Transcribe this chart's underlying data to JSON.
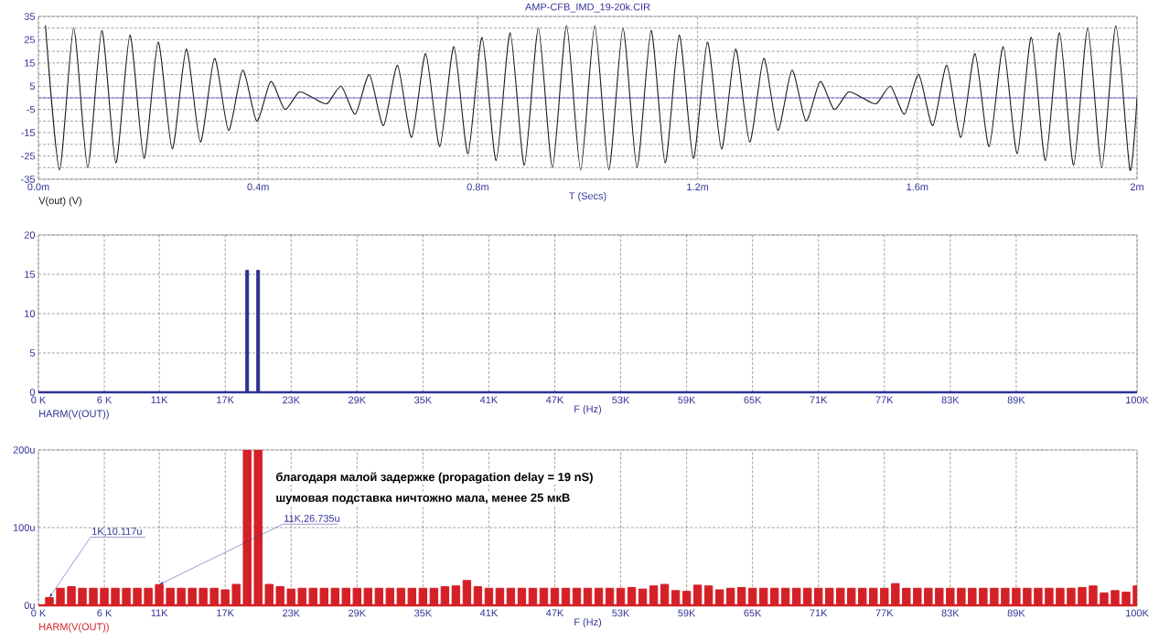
{
  "chart_data": [
    {
      "type": "line",
      "title": "AMP-CFB_IMD_19-20k.CIR",
      "xlabel": "T (Secs)",
      "legend": "bottom left",
      "x": [
        0.0128,
        0.0384,
        0.0641,
        0.0897,
        0.1154,
        0.141,
        0.1666,
        0.1923,
        0.2179,
        0.2436,
        0.2692,
        0.2948,
        0.3205,
        0.3461,
        0.3718,
        0.3974,
        0.423,
        0.4487,
        0.4743,
        0.5,
        0.5256,
        0.5512,
        0.5769,
        0.6025,
        0.6282,
        0.6538,
        0.6794,
        0.7051,
        0.7307,
        0.7564,
        0.782,
        0.8076,
        0.8333,
        0.8589,
        0.8846,
        0.9102,
        0.9358,
        0.9615,
        0.9871,
        1.0128,
        1.0384,
        1.0641,
        1.0897,
        1.1154,
        1.141,
        1.1666,
        1.1923,
        1.2179,
        1.2436,
        1.2692,
        1.2948,
        1.3205,
        1.3461,
        1.3718,
        1.3974,
        1.423,
        1.4487,
        1.4743,
        1.5,
        1.5256,
        1.5512,
        1.5769,
        1.6025,
        1.6282,
        1.6538,
        1.6794,
        1.7051,
        1.7307,
        1.7564,
        1.782,
        1.8076,
        1.8333,
        1.8589,
        1.8846,
        1.9102,
        1.9358,
        1.9615,
        1.9871,
        2
      ],
      "series": [
        {
          "name": "V(out) (V)",
          "color": "#1a1a1a",
          "values": [
            31,
            -31,
            30,
            -30,
            29,
            -28,
            27,
            -26,
            24,
            -22,
            21,
            -19,
            17,
            -14,
            12,
            -10,
            7,
            -5,
            2.5,
            0,
            -2.5,
            5,
            -7,
            10,
            -12,
            14,
            -17,
            19,
            -21,
            22,
            -24,
            26,
            -27,
            28,
            -29,
            30,
            -30,
            31,
            -31,
            31,
            -31,
            30,
            -30,
            29,
            -28,
            27,
            -26,
            24,
            -22,
            21,
            -19,
            17,
            -14,
            12,
            -10,
            7,
            -5,
            2.5,
            0,
            -2.5,
            5,
            -7,
            10,
            -12,
            14,
            -17,
            19,
            -21,
            22,
            -24,
            26,
            -27,
            28,
            -29,
            30,
            -30,
            31,
            -31,
            0
          ]
        }
      ],
      "xlim": [
        0,
        2
      ],
      "xticks": [
        {
          "value": 0,
          "label": "0.0m"
        },
        {
          "value": 0.4,
          "label": "0.4m"
        },
        {
          "value": 0.8,
          "label": "0.8m"
        },
        {
          "value": 1.2,
          "label": "1.2m"
        },
        {
          "value": 1.6,
          "label": "1.6m"
        },
        {
          "value": 2,
          "label": "2m"
        }
      ],
      "ylim": [
        -35,
        35
      ],
      "yticks": [
        -35,
        {
          "value": -30,
          "label": null
        },
        -25,
        {
          "value": -20,
          "label": null
        },
        -15,
        {
          "value": -10,
          "label": null
        },
        -5,
        {
          "value": 0,
          "label": null
        },
        5,
        {
          "value": 10,
          "label": null
        },
        15,
        {
          "value": 20,
          "label": null
        },
        25,
        {
          "value": 30,
          "label": null
        },
        35
      ],
      "grid": true,
      "ref_lines": [
        {
          "axis": "y",
          "value": 0,
          "color": "#3333cc"
        }
      ]
    },
    {
      "type": "bar",
      "xlabel": "F (Hz)",
      "legend": "bottom left",
      "x": [
        1000,
        2000,
        3000,
        4000,
        5000,
        6000,
        7000,
        8000,
        9000,
        10000,
        11000,
        12000,
        13000,
        14000,
        15000,
        16000,
        17000,
        18000,
        19000,
        20000,
        21000,
        22000,
        23000,
        24000,
        25000,
        26000,
        27000,
        28000,
        29000,
        30000,
        31000,
        32000,
        33000,
        34000,
        35000,
        36000,
        37000,
        38000,
        39000,
        40000,
        41000,
        42000,
        43000,
        44000,
        45000,
        46000,
        47000,
        48000,
        49000,
        50000,
        51000,
        52000,
        53000,
        54000,
        55000,
        56000,
        57000,
        58000,
        59000,
        60000,
        61000,
        62000,
        63000,
        64000,
        65000,
        66000,
        67000,
        68000,
        69000,
        70000,
        71000,
        72000,
        73000,
        74000,
        75000,
        76000,
        77000,
        78000,
        79000,
        80000,
        81000,
        82000,
        83000,
        84000,
        85000,
        86000,
        87000,
        88000,
        89000,
        90000,
        91000,
        92000,
        93000,
        94000,
        95000,
        96000,
        97000,
        98000,
        99000,
        100000
      ],
      "series": [
        {
          "name": "HARM(V(OUT))",
          "color": "#2e3192",
          "values": [
            0,
            0,
            0,
            0,
            0,
            0,
            0,
            0,
            0,
            0,
            0,
            0,
            0,
            0,
            0,
            0,
            0,
            0,
            15.5,
            15.5,
            0,
            0,
            0,
            0,
            0,
            0,
            0,
            0,
            0,
            0,
            0,
            0,
            0,
            0,
            0,
            0,
            0,
            0,
            0,
            0,
            0,
            0,
            0,
            0,
            0,
            0,
            0,
            0,
            0,
            0,
            0,
            0,
            0,
            0,
            0,
            0,
            0,
            0,
            0,
            0,
            0,
            0,
            0,
            0,
            0,
            0,
            0,
            0,
            0,
            0,
            0,
            0,
            0,
            0,
            0,
            0,
            0,
            0,
            0,
            0,
            0,
            0,
            0,
            0,
            0,
            0,
            0,
            0,
            0,
            0,
            0,
            0,
            0,
            0,
            0,
            0,
            0,
            0,
            0,
            0
          ]
        }
      ],
      "xlim": [
        0,
        100000
      ],
      "xticks": [
        {
          "value": 0,
          "label": "0 K"
        },
        {
          "value": 6000,
          "label": "6 K"
        },
        {
          "value": 11000,
          "label": "11K"
        },
        {
          "value": 17000,
          "label": "17K"
        },
        {
          "value": 23000,
          "label": "23K"
        },
        {
          "value": 29000,
          "label": "29K"
        },
        {
          "value": 35000,
          "label": "35K"
        },
        {
          "value": 41000,
          "label": "41K"
        },
        {
          "value": 47000,
          "label": "47K"
        },
        {
          "value": 53000,
          "label": "53K"
        },
        {
          "value": 59000,
          "label": "59K"
        },
        {
          "value": 65000,
          "label": "65K"
        },
        {
          "value": 71000,
          "label": "71K"
        },
        {
          "value": 77000,
          "label": "77K"
        },
        {
          "value": 83000,
          "label": "83K"
        },
        {
          "value": 89000,
          "label": "89K"
        },
        {
          "value": 100000,
          "label": "100K"
        }
      ],
      "ylim": [
        0,
        20
      ],
      "yticks": [
        0,
        5,
        10,
        15,
        20
      ],
      "grid": true
    },
    {
      "type": "bar",
      "xlabel": "F (Hz)",
      "legend": "bottom left",
      "x": [
        1000,
        2000,
        3000,
        4000,
        5000,
        6000,
        7000,
        8000,
        9000,
        10000,
        11000,
        12000,
        13000,
        14000,
        15000,
        16000,
        17000,
        18000,
        19000,
        20000,
        21000,
        22000,
        23000,
        24000,
        25000,
        26000,
        27000,
        28000,
        29000,
        30000,
        31000,
        32000,
        33000,
        34000,
        35000,
        36000,
        37000,
        38000,
        39000,
        40000,
        41000,
        42000,
        43000,
        44000,
        45000,
        46000,
        47000,
        48000,
        49000,
        50000,
        51000,
        52000,
        53000,
        54000,
        55000,
        56000,
        57000,
        58000,
        59000,
        60000,
        61000,
        62000,
        63000,
        64000,
        65000,
        66000,
        67000,
        68000,
        69000,
        70000,
        71000,
        72000,
        73000,
        74000,
        75000,
        76000,
        77000,
        78000,
        79000,
        80000,
        81000,
        82000,
        83000,
        84000,
        85000,
        86000,
        87000,
        88000,
        89000,
        90000,
        91000,
        92000,
        93000,
        94000,
        95000,
        96000,
        97000,
        98000,
        99000,
        100000
      ],
      "series": [
        {
          "name": "HARM(V(OUT))",
          "color": "#d42027",
          "values": [
            10.117,
            22,
            24,
            22,
            22,
            22,
            22,
            22,
            22,
            22,
            26.735,
            22,
            22,
            22,
            22,
            22,
            20,
            27,
            200,
            200,
            27,
            24,
            21,
            22,
            22,
            22,
            22,
            22,
            22,
            22,
            22,
            22,
            22,
            22,
            22,
            22,
            24,
            25,
            32,
            24,
            22,
            22,
            22,
            22,
            22,
            22,
            22,
            22,
            22,
            22,
            22,
            22,
            22,
            23,
            21,
            25,
            27,
            19,
            18,
            26,
            25,
            20,
            22,
            23,
            22,
            22,
            22,
            22,
            22,
            22,
            22,
            22,
            22,
            22,
            22,
            22,
            22,
            28,
            22,
            22,
            22,
            22,
            22,
            22,
            22,
            22,
            22,
            22,
            22,
            22,
            22,
            22,
            22,
            22,
            23,
            25,
            16,
            19,
            17,
            25
          ]
        }
      ],
      "xlim": [
        0,
        100000
      ],
      "xticks": [
        {
          "value": 0,
          "label": "0 K"
        },
        {
          "value": 6000,
          "label": "6 K"
        },
        {
          "value": 11000,
          "label": "11K"
        },
        {
          "value": 17000,
          "label": "17K"
        },
        {
          "value": 23000,
          "label": "23K"
        },
        {
          "value": 29000,
          "label": "29K"
        },
        {
          "value": 35000,
          "label": "35K"
        },
        {
          "value": 41000,
          "label": "41K"
        },
        {
          "value": 47000,
          "label": "47K"
        },
        {
          "value": 53000,
          "label": "53K"
        },
        {
          "value": 59000,
          "label": "59K"
        },
        {
          "value": 65000,
          "label": "65K"
        },
        {
          "value": 71000,
          "label": "71K"
        },
        {
          "value": 77000,
          "label": "77K"
        },
        {
          "value": 83000,
          "label": "83K"
        },
        {
          "value": 89000,
          "label": "89K"
        },
        {
          "value": 100000,
          "label": "100K"
        }
      ],
      "ylim": [
        0,
        200
      ],
      "yticks": [
        {
          "value": 0,
          "label": "0u"
        },
        {
          "value": 100,
          "label": "100u"
        },
        {
          "value": 200,
          "label": "200u"
        }
      ],
      "grid": true,
      "annotations": [
        {
          "text": "1K,10.117u",
          "x": 1000,
          "y": 10.117
        },
        {
          "text": "11K,26.735u",
          "x": 11000,
          "y": 26.735
        },
        "благодаря малой задержке (propagation delay = 19 nS)",
        "шумовая подставка ничтожно мала, менее 25 мкВ"
      ]
    }
  ]
}
